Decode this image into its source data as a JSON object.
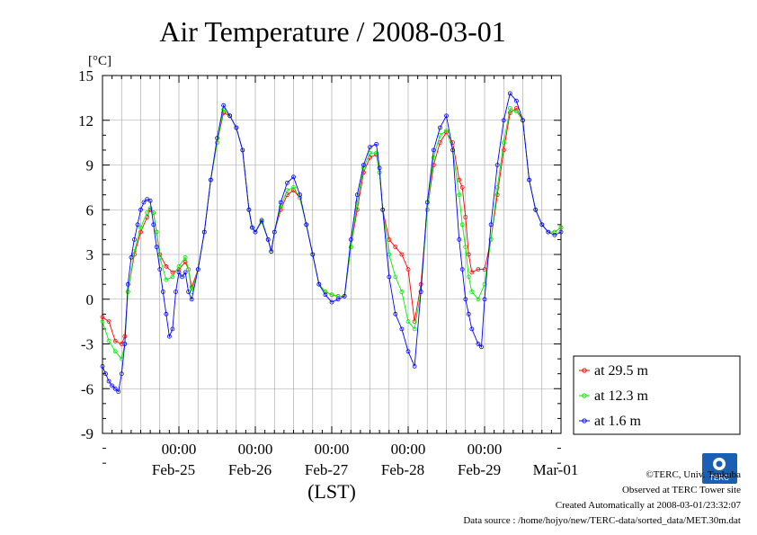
{
  "chart_data": {
    "type": "line",
    "title": "Air Temperature / 2008-03-01",
    "ylabel": "[°C]",
    "xlabel": "(LST)",
    "ylim": [
      -9,
      15
    ],
    "y_ticks": [
      "15",
      "12",
      "9",
      "6",
      "3",
      "0",
      "-3",
      "-6",
      "-9"
    ],
    "x_unit": "hours since 2008-02-24 00:00 LST",
    "x_range": [
      0,
      144
    ],
    "x_tick_labels": [
      {
        "time": "00:00",
        "date": "Feb-25",
        "hour": 24
      },
      {
        "time": "00:00",
        "date": "Feb-26",
        "hour": 48
      },
      {
        "time": "00:00",
        "date": "Feb-27",
        "hour": 72
      },
      {
        "time": "00:00",
        "date": "Feb-28",
        "hour": 96
      },
      {
        "time": "00:00",
        "date": "Feb-29",
        "hour": 120
      },
      {
        "time": "00:00",
        "date": "Mar-01",
        "hour": 144
      }
    ],
    "grid": true,
    "legend_position": "right",
    "series": [
      {
        "name": "at 29.5 m",
        "color": "#ff0000",
        "points": [
          [
            0,
            -1.2
          ],
          [
            2,
            -1.5
          ],
          [
            4,
            -2.8
          ],
          [
            6,
            -3.0
          ],
          [
            7,
            -2.5
          ],
          [
            8,
            0.5
          ],
          [
            10,
            3.0
          ],
          [
            12,
            4.5
          ],
          [
            14,
            5.5
          ],
          [
            15,
            6.0
          ],
          [
            16,
            5.8
          ],
          [
            17,
            4.5
          ],
          [
            18,
            3.0
          ],
          [
            20,
            2.2
          ],
          [
            22,
            1.8
          ],
          [
            24,
            2.0
          ],
          [
            26,
            2.5
          ],
          [
            27,
            2.0
          ],
          [
            28,
            0.8
          ],
          [
            30,
            2.0
          ],
          [
            32,
            4.5
          ],
          [
            34,
            8.0
          ],
          [
            36,
            10.5
          ],
          [
            38,
            12.5
          ],
          [
            40,
            12.3
          ],
          [
            42,
            11.5
          ],
          [
            44,
            10.0
          ],
          [
            46,
            6.0
          ],
          [
            47,
            4.8
          ],
          [
            48,
            4.5
          ],
          [
            50,
            5.2
          ],
          [
            52,
            4.0
          ],
          [
            53,
            3.2
          ],
          [
            54,
            4.5
          ],
          [
            56,
            6.0
          ],
          [
            58,
            7.0
          ],
          [
            60,
            7.3
          ],
          [
            62,
            6.8
          ],
          [
            64,
            5.0
          ],
          [
            66,
            3.0
          ],
          [
            68,
            1.0
          ],
          [
            70,
            0.5
          ],
          [
            72,
            0.3
          ],
          [
            74,
            0.2
          ],
          [
            76,
            0.2
          ],
          [
            78,
            3.5
          ],
          [
            80,
            6.0
          ],
          [
            82,
            8.5
          ],
          [
            84,
            9.5
          ],
          [
            86,
            9.7
          ],
          [
            87,
            8.5
          ],
          [
            88,
            6.0
          ],
          [
            90,
            4.0
          ],
          [
            92,
            3.5
          ],
          [
            94,
            3.0
          ],
          [
            96,
            2.0
          ],
          [
            98,
            -1.5
          ],
          [
            100,
            1.0
          ],
          [
            102,
            6.0
          ],
          [
            104,
            9.0
          ],
          [
            106,
            10.5
          ],
          [
            108,
            11.2
          ],
          [
            110,
            10.5
          ],
          [
            112,
            8.0
          ],
          [
            113,
            7.5
          ],
          [
            114,
            5.5
          ],
          [
            115,
            3.0
          ],
          [
            116,
            1.8
          ],
          [
            118,
            2.0
          ],
          [
            120,
            2.0
          ],
          [
            122,
            4.0
          ],
          [
            124,
            7.0
          ],
          [
            126,
            10.0
          ],
          [
            128,
            12.5
          ],
          [
            130,
            12.8
          ],
          [
            132,
            12.0
          ],
          [
            134,
            8.0
          ],
          [
            136,
            6.0
          ],
          [
            138,
            5.0
          ],
          [
            140,
            4.5
          ],
          [
            142,
            4.5
          ],
          [
            144,
            4.8
          ]
        ]
      },
      {
        "name": "at 12.3 m",
        "color": "#00ee00",
        "points": [
          [
            0,
            -1.5
          ],
          [
            2,
            -2.8
          ],
          [
            4,
            -3.5
          ],
          [
            6,
            -4.0
          ],
          [
            7,
            -3.0
          ],
          [
            8,
            0.5
          ],
          [
            10,
            3.2
          ],
          [
            12,
            4.8
          ],
          [
            14,
            5.8
          ],
          [
            15,
            6.1
          ],
          [
            16,
            5.8
          ],
          [
            17,
            4.5
          ],
          [
            18,
            2.8
          ],
          [
            20,
            1.3
          ],
          [
            22,
            1.5
          ],
          [
            24,
            2.2
          ],
          [
            26,
            2.8
          ],
          [
            27,
            2.0
          ],
          [
            28,
            0.5
          ],
          [
            30,
            2.0
          ],
          [
            32,
            4.5
          ],
          [
            34,
            8.0
          ],
          [
            36,
            10.5
          ],
          [
            38,
            12.7
          ],
          [
            40,
            12.3
          ],
          [
            42,
            11.5
          ],
          [
            44,
            10.0
          ],
          [
            46,
            6.0
          ],
          [
            47,
            4.8
          ],
          [
            48,
            4.5
          ],
          [
            50,
            5.2
          ],
          [
            52,
            4.0
          ],
          [
            53,
            3.2
          ],
          [
            54,
            4.5
          ],
          [
            56,
            6.2
          ],
          [
            58,
            7.3
          ],
          [
            60,
            7.5
          ],
          [
            62,
            6.8
          ],
          [
            64,
            5.0
          ],
          [
            66,
            3.0
          ],
          [
            68,
            1.0
          ],
          [
            70,
            0.5
          ],
          [
            72,
            0.3
          ],
          [
            74,
            0.2
          ],
          [
            76,
            0.2
          ],
          [
            78,
            3.5
          ],
          [
            80,
            6.5
          ],
          [
            82,
            8.8
          ],
          [
            84,
            9.8
          ],
          [
            86,
            9.8
          ],
          [
            87,
            8.5
          ],
          [
            88,
            6.0
          ],
          [
            90,
            3.0
          ],
          [
            92,
            1.5
          ],
          [
            94,
            0.5
          ],
          [
            96,
            -1.5
          ],
          [
            98,
            -2.0
          ],
          [
            100,
            0.5
          ],
          [
            102,
            6.0
          ],
          [
            104,
            9.5
          ],
          [
            106,
            11.0
          ],
          [
            108,
            11.3
          ],
          [
            110,
            10.0
          ],
          [
            112,
            7.0
          ],
          [
            113,
            5.0
          ],
          [
            114,
            3.5
          ],
          [
            115,
            1.5
          ],
          [
            116,
            0.5
          ],
          [
            118,
            0.0
          ],
          [
            120,
            1.0
          ],
          [
            122,
            4.0
          ],
          [
            124,
            7.5
          ],
          [
            126,
            10.5
          ],
          [
            128,
            12.8
          ],
          [
            130,
            12.6
          ],
          [
            132,
            12.0
          ],
          [
            134,
            8.0
          ],
          [
            136,
            6.0
          ],
          [
            138,
            5.0
          ],
          [
            140,
            4.5
          ],
          [
            142,
            4.5
          ],
          [
            144,
            4.8
          ]
        ]
      },
      {
        "name": "at 1.6 m",
        "color": "#0000ff",
        "points": [
          [
            0,
            -4.5
          ],
          [
            1,
            -5.0
          ],
          [
            2,
            -5.5
          ],
          [
            3,
            -5.8
          ],
          [
            4,
            -6.0
          ],
          [
            5,
            -6.2
          ],
          [
            6,
            -5.0
          ],
          [
            7,
            -3.0
          ],
          [
            8,
            1.0
          ],
          [
            9,
            2.8
          ],
          [
            10,
            4.0
          ],
          [
            11,
            5.0
          ],
          [
            12,
            6.0
          ],
          [
            13,
            6.5
          ],
          [
            14,
            6.7
          ],
          [
            15,
            6.6
          ],
          [
            16,
            5.0
          ],
          [
            17,
            3.5
          ],
          [
            18,
            2.0
          ],
          [
            19,
            0.5
          ],
          [
            20,
            -1.0
          ],
          [
            21,
            -2.5
          ],
          [
            22,
            -2.0
          ],
          [
            23,
            0.5
          ],
          [
            24,
            1.8
          ],
          [
            25,
            1.5
          ],
          [
            26,
            1.8
          ],
          [
            27,
            0.5
          ],
          [
            28,
            0.0
          ],
          [
            30,
            2.0
          ],
          [
            32,
            4.5
          ],
          [
            34,
            8.0
          ],
          [
            36,
            10.8
          ],
          [
            38,
            13.0
          ],
          [
            40,
            12.3
          ],
          [
            42,
            11.5
          ],
          [
            44,
            10.0
          ],
          [
            46,
            6.0
          ],
          [
            47,
            4.8
          ],
          [
            48,
            4.5
          ],
          [
            50,
            5.3
          ],
          [
            52,
            4.0
          ],
          [
            53,
            3.2
          ],
          [
            54,
            4.5
          ],
          [
            56,
            6.5
          ],
          [
            58,
            7.8
          ],
          [
            60,
            8.2
          ],
          [
            62,
            7.0
          ],
          [
            64,
            5.0
          ],
          [
            66,
            3.0
          ],
          [
            68,
            1.0
          ],
          [
            70,
            0.3
          ],
          [
            72,
            -0.2
          ],
          [
            74,
            0.0
          ],
          [
            76,
            0.2
          ],
          [
            78,
            4.0
          ],
          [
            80,
            7.0
          ],
          [
            82,
            9.0
          ],
          [
            84,
            10.2
          ],
          [
            86,
            10.4
          ],
          [
            87,
            8.8
          ],
          [
            88,
            6.0
          ],
          [
            90,
            1.5
          ],
          [
            92,
            -1.0
          ],
          [
            94,
            -2.0
          ],
          [
            96,
            -3.5
          ],
          [
            98,
            -4.5
          ],
          [
            100,
            0.5
          ],
          [
            102,
            6.5
          ],
          [
            104,
            10.0
          ],
          [
            106,
            11.5
          ],
          [
            108,
            12.3
          ],
          [
            110,
            10.0
          ],
          [
            112,
            4.0
          ],
          [
            113,
            2.0
          ],
          [
            114,
            0.0
          ],
          [
            115,
            -1.0
          ],
          [
            116,
            -2.0
          ],
          [
            118,
            -3.0
          ],
          [
            119,
            -3.2
          ],
          [
            120,
            0.0
          ],
          [
            122,
            5.0
          ],
          [
            124,
            9.0
          ],
          [
            126,
            12.0
          ],
          [
            128,
            13.8
          ],
          [
            130,
            13.3
          ],
          [
            132,
            12.0
          ],
          [
            134,
            8.0
          ],
          [
            136,
            6.0
          ],
          [
            138,
            5.0
          ],
          [
            140,
            4.5
          ],
          [
            142,
            4.3
          ],
          [
            144,
            4.5
          ]
        ]
      }
    ]
  },
  "credits": {
    "copyright": "©TERC, Univ. Tsukuba",
    "observed": "Observed at TERC Tower site",
    "created": "Created Automatically at 2008-03-01/23:32:07",
    "source": "Data source : /home/hojyo/new/TERC-data/sorted_data/MET.30m.dat"
  },
  "logo": {
    "text": "TERC",
    "color": "#1a5fb4"
  }
}
